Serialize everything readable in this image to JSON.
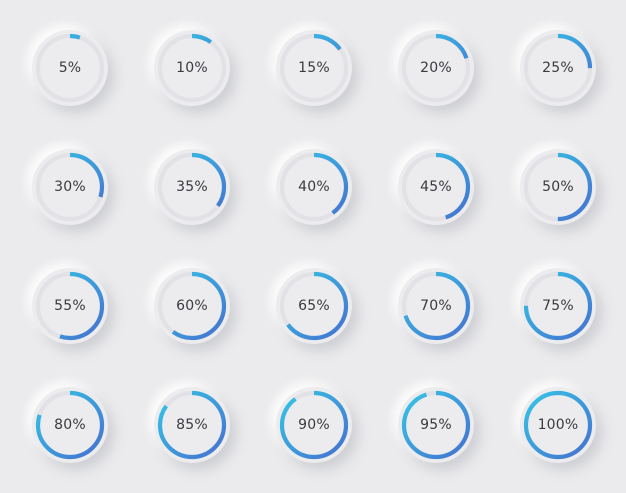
{
  "colors": {
    "background": "#ebebed",
    "track": "#e2e2e6",
    "progress_start": "#35c6e6",
    "progress_end": "#4570d0",
    "label": "#3a3a3f"
  },
  "gauges": [
    {
      "label": "5%",
      "value": 5
    },
    {
      "label": "10%",
      "value": 10
    },
    {
      "label": "15%",
      "value": 15
    },
    {
      "label": "20%",
      "value": 20
    },
    {
      "label": "25%",
      "value": 25
    },
    {
      "label": "30%",
      "value": 30
    },
    {
      "label": "35%",
      "value": 35
    },
    {
      "label": "40%",
      "value": 40
    },
    {
      "label": "45%",
      "value": 45
    },
    {
      "label": "50%",
      "value": 50
    },
    {
      "label": "55%",
      "value": 55
    },
    {
      "label": "60%",
      "value": 60
    },
    {
      "label": "65%",
      "value": 65
    },
    {
      "label": "70%",
      "value": 70
    },
    {
      "label": "75%",
      "value": 75
    },
    {
      "label": "80%",
      "value": 80
    },
    {
      "label": "85%",
      "value": 85
    },
    {
      "label": "90%",
      "value": 90
    },
    {
      "label": "95%",
      "value": 95
    },
    {
      "label": "100%",
      "value": 100
    }
  ]
}
